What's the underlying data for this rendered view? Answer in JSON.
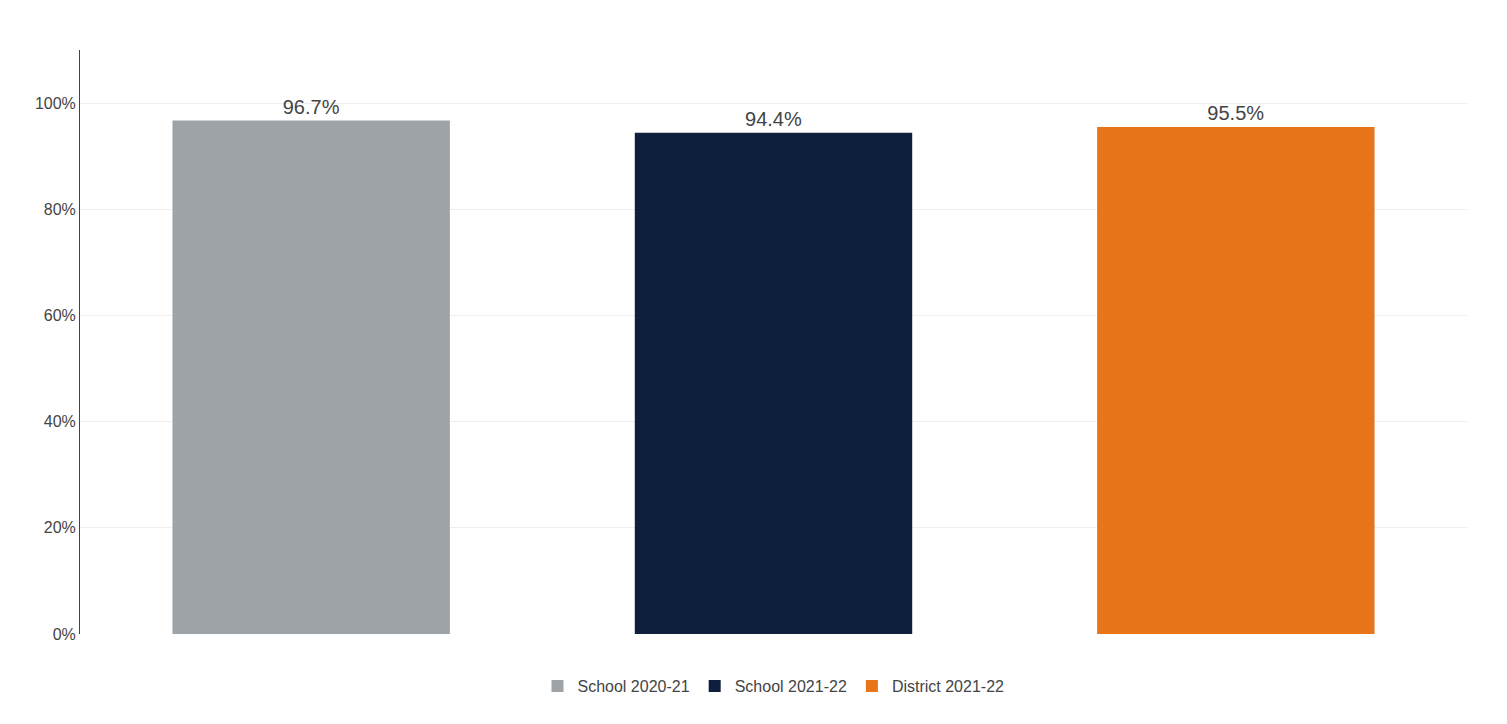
{
  "chart_data": {
    "type": "bar",
    "categories": [
      "School 2020-21",
      "School 2021-22",
      "District 2021-22"
    ],
    "values": [
      96.7,
      94.4,
      95.5
    ],
    "value_labels": [
      "96.7%",
      "94.4%",
      "95.5%"
    ],
    "data_labels": true,
    "colors": [
      "#9EA3A8",
      "#0D1F3C",
      "#E8751A"
    ],
    "ylim": [
      0,
      110
    ],
    "yticks": [
      {
        "value": 0,
        "label": "0%"
      },
      {
        "value": 20,
        "label": "20%"
      },
      {
        "value": 40,
        "label": "40%"
      },
      {
        "value": 60,
        "label": "60%"
      },
      {
        "value": 80,
        "label": "80%"
      },
      {
        "value": 100,
        "label": "100%"
      }
    ],
    "grid": true,
    "legend": "bottom",
    "tick_labels": "y"
  }
}
